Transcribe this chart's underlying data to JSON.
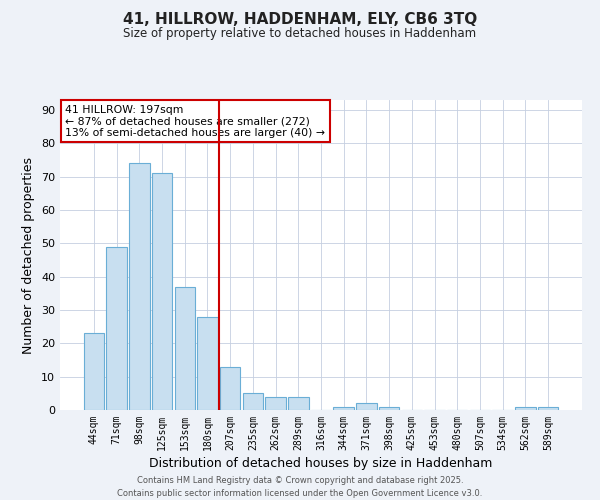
{
  "title_line1": "41, HILLROW, HADDENHAM, ELY, CB6 3TQ",
  "title_line2": "Size of property relative to detached houses in Haddenham",
  "xlabel": "Distribution of detached houses by size in Haddenham",
  "ylabel": "Number of detached properties",
  "bar_labels": [
    "44sqm",
    "71sqm",
    "98sqm",
    "125sqm",
    "153sqm",
    "180sqm",
    "207sqm",
    "235sqm",
    "262sqm",
    "289sqm",
    "316sqm",
    "344sqm",
    "371sqm",
    "398sqm",
    "425sqm",
    "453sqm",
    "480sqm",
    "507sqm",
    "534sqm",
    "562sqm",
    "589sqm"
  ],
  "bar_values": [
    23,
    49,
    74,
    71,
    37,
    28,
    13,
    5,
    4,
    4,
    0,
    1,
    2,
    1,
    0,
    0,
    0,
    0,
    0,
    1,
    1
  ],
  "bar_color": "#c8dff0",
  "bar_edge_color": "#6aaed6",
  "vline_x": 5.5,
  "vline_color": "#cc0000",
  "annotation_title": "41 HILLROW: 197sqm",
  "annotation_line1": "← 87% of detached houses are smaller (272)",
  "annotation_line2": "13% of semi-detached houses are larger (40) →",
  "annotation_box_edge": "#cc0000",
  "ylim": [
    0,
    93
  ],
  "yticks": [
    0,
    10,
    20,
    30,
    40,
    50,
    60,
    70,
    80,
    90
  ],
  "footer_line1": "Contains HM Land Registry data © Crown copyright and database right 2025.",
  "footer_line2": "Contains public sector information licensed under the Open Government Licence v3.0.",
  "bg_color": "#eef2f8",
  "plot_bg_color": "#ffffff"
}
